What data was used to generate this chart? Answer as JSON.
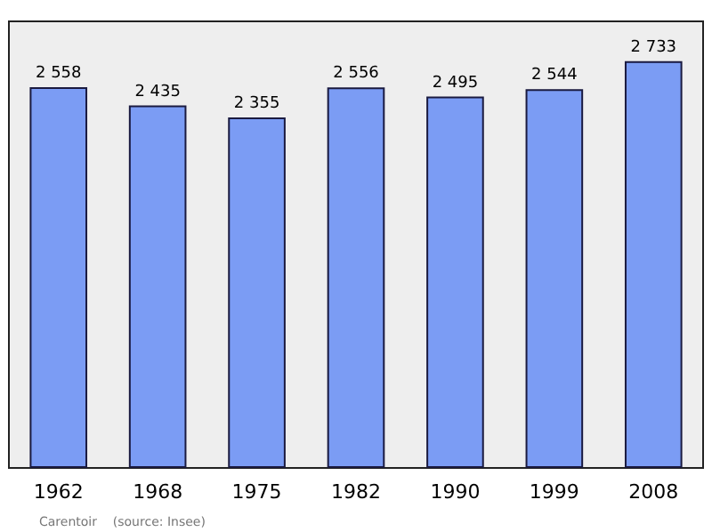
{
  "chart_data": {
    "type": "bar",
    "categories": [
      "1962",
      "1968",
      "1975",
      "1982",
      "1990",
      "1999",
      "2008"
    ],
    "values": [
      2558,
      2435,
      2355,
      2556,
      2495,
      2544,
      2733
    ],
    "value_labels": [
      "2 558",
      "2 435",
      "2 355",
      "2 556",
      "2 495",
      "2 544",
      "2 733"
    ],
    "color": "#7b9cf4",
    "annotations": [
      "Carentoir    (source: Insee)"
    ]
  }
}
